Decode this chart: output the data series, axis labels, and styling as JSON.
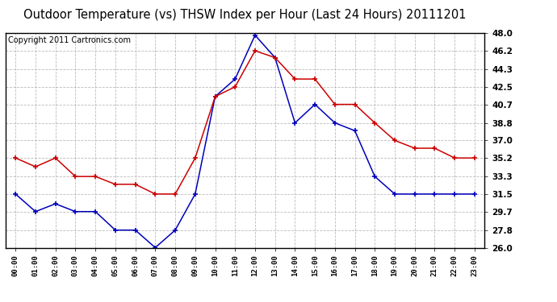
{
  "title": "Outdoor Temperature (vs) THSW Index per Hour (Last 24 Hours) 20111201",
  "copyright": "Copyright 2011 Cartronics.com",
  "hours": [
    "00:00",
    "01:00",
    "02:00",
    "03:00",
    "04:00",
    "05:00",
    "06:00",
    "07:00",
    "08:00",
    "09:00",
    "10:00",
    "11:00",
    "12:00",
    "13:00",
    "14:00",
    "15:00",
    "16:00",
    "17:00",
    "18:00",
    "19:00",
    "20:00",
    "21:00",
    "22:00",
    "23:00"
  ],
  "temp_blue": [
    31.5,
    29.7,
    30.5,
    29.7,
    29.7,
    27.8,
    27.8,
    26.0,
    27.8,
    31.5,
    41.5,
    43.3,
    47.8,
    45.5,
    38.8,
    40.7,
    38.8,
    38.0,
    33.3,
    31.5,
    31.5,
    31.5,
    31.5,
    31.5
  ],
  "thsw_red": [
    35.2,
    34.3,
    35.2,
    33.3,
    33.3,
    32.5,
    32.5,
    31.5,
    31.5,
    35.2,
    41.5,
    42.5,
    46.2,
    45.5,
    43.3,
    43.3,
    40.7,
    40.7,
    38.8,
    37.0,
    36.2,
    36.2,
    35.2,
    35.2
  ],
  "ylim": [
    26.0,
    48.0
  ],
  "yticks": [
    26.0,
    27.8,
    29.7,
    31.5,
    33.3,
    35.2,
    37.0,
    38.8,
    40.7,
    42.5,
    44.3,
    46.2,
    48.0
  ],
  "blue_color": "#0000bb",
  "red_color": "#cc0000",
  "bg_color": "#ffffff",
  "grid_color": "#aaaaaa",
  "title_fontsize": 10.5,
  "copyright_fontsize": 7.0
}
